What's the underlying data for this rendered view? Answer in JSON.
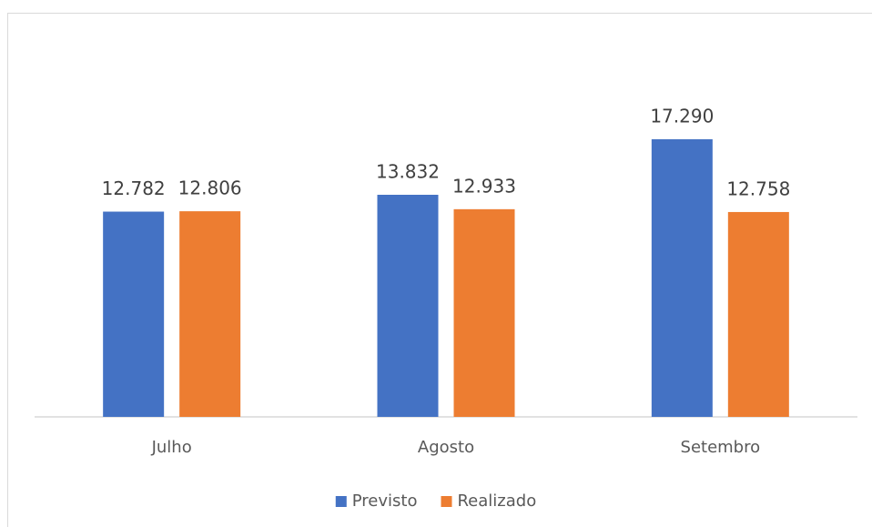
{
  "chart_data": {
    "type": "bar",
    "categories": [
      "Julho",
      "Agosto",
      "Setembro"
    ],
    "series": [
      {
        "name": "Previsto",
        "color": "#4472c4",
        "values": [
          12782,
          13832,
          17290
        ],
        "value_labels": [
          "12.782",
          "13.832",
          "17.290"
        ]
      },
      {
        "name": "Realizado",
        "color": "#ed7d31",
        "values": [
          12806,
          12933,
          12758
        ],
        "value_labels": [
          "12.806",
          "12.933",
          "12.758"
        ]
      }
    ],
    "legend": "bottom"
  }
}
